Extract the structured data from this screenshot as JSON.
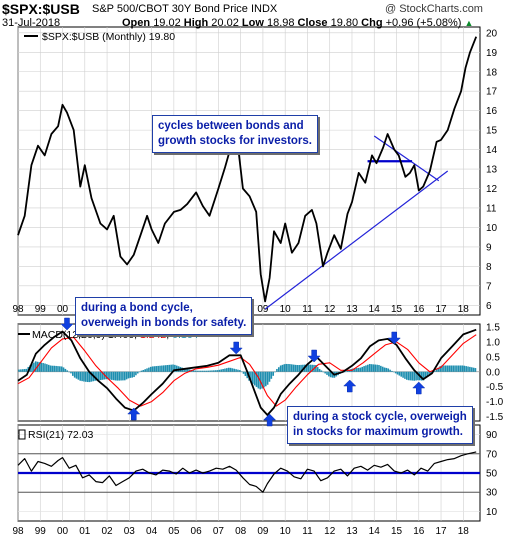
{
  "header": {
    "symbol": "$SPX:$USB",
    "description": "S&P 500/CBOT 30Y Bond Price INDX",
    "watermark": "@ StockCharts.com",
    "date": "31-Jul-2018",
    "open_label": "Open",
    "open": "19.02",
    "high_label": "High",
    "high": "20.02",
    "low_label": "Low",
    "low": "18.98",
    "close_label": "Close",
    "close": "19.80",
    "chg_label": "Chg",
    "chg": "+0.96 (+5.08%)",
    "chg_arrow": "▲"
  },
  "chart_data": [
    {
      "type": "line",
      "panel": "price",
      "legend": "$SPX:$USB (Monthly) 19.80",
      "ylim": [
        5.5,
        20.3
      ],
      "y_ticks": [
        6,
        7,
        8,
        9,
        10,
        11,
        12,
        13,
        14,
        15,
        16,
        17,
        18,
        19,
        20
      ],
      "x_tick_labels": [
        "98",
        "99",
        "00",
        "01",
        "02",
        "03",
        "04",
        "05",
        "06",
        "07",
        "08",
        "09",
        "10",
        "11",
        "12",
        "13",
        "14",
        "15",
        "16",
        "17",
        "18"
      ],
      "grid": true,
      "line_color": "#000000",
      "x": [
        1998.0,
        1998.3,
        1998.6,
        1998.9,
        1999.2,
        1999.5,
        1999.8,
        2000.0,
        2000.2,
        2000.5,
        2000.8,
        2001.0,
        2001.3,
        2001.7,
        2002.0,
        2002.3,
        2002.6,
        2002.9,
        2003.2,
        2003.5,
        2003.8,
        2004.0,
        2004.3,
        2004.6,
        2005.0,
        2005.3,
        2005.6,
        2006.0,
        2006.3,
        2006.6,
        2007.0,
        2007.3,
        2007.6,
        2007.9,
        2008.1,
        2008.4,
        2008.7,
        2008.9,
        2009.1,
        2009.3,
        2009.5,
        2009.8,
        2010.0,
        2010.3,
        2010.6,
        2010.9,
        2011.2,
        2011.4,
        2011.7,
        2011.9,
        2012.2,
        2012.5,
        2012.8,
        2013.0,
        2013.3,
        2013.6,
        2013.9,
        2014.1,
        2014.4,
        2014.6,
        2014.9,
        2015.1,
        2015.4,
        2015.6,
        2015.8,
        2016.0,
        2016.2,
        2016.5,
        2016.8,
        2017.0,
        2017.3,
        2017.6,
        2017.9,
        2018.1,
        2018.3,
        2018.58
      ],
      "values": [
        9.6,
        10.6,
        13.2,
        14.2,
        13.7,
        14.8,
        15.2,
        16.3,
        15.9,
        15.0,
        12.1,
        13.2,
        11.5,
        10.2,
        9.9,
        10.6,
        8.5,
        8.1,
        8.6,
        9.6,
        10.6,
        9.9,
        9.2,
        10.2,
        10.8,
        10.9,
        11.2,
        11.8,
        11.1,
        10.6,
        12.0,
        13.1,
        14.3,
        14.0,
        12.0,
        11.6,
        10.8,
        7.6,
        6.2,
        7.4,
        9.8,
        9.2,
        10.2,
        8.7,
        9.2,
        10.6,
        10.9,
        10.2,
        8.0,
        8.7,
        9.6,
        8.9,
        10.7,
        11.3,
        12.8,
        12.3,
        13.7,
        13.3,
        14.1,
        14.8,
        14.0,
        13.7,
        12.6,
        12.8,
        13.2,
        11.9,
        12.1,
        12.9,
        14.4,
        14.5,
        15.0,
        16.1,
        17.0,
        18.2,
        19.0,
        19.8
      ]
    },
    {
      "type": "line",
      "panel": "macd",
      "legend": "MACD(12,26,9) 1.406, 1.242, 0.164",
      "legend_parts": [
        "MACD(12,26,9) ",
        "1.406",
        ", ",
        "1.242",
        ", ",
        "0.164"
      ],
      "ylim": [
        -1.65,
        1.6
      ],
      "y_ticks": [
        -1.5,
        -1.0,
        -0.5,
        0.0,
        0.5,
        1.0,
        1.5
      ],
      "y_tick_labels": [
        "-1.5",
        "-1.0",
        "-0.5",
        "0.0",
        "0.5",
        "1.0",
        "1.5"
      ],
      "series": [
        {
          "color": "#000000",
          "x": [
            1998.0,
            1998.4,
            1998.8,
            1999.2,
            1999.6,
            2000.0,
            2000.4,
            2000.8,
            2001.2,
            2001.6,
            2002.0,
            2002.4,
            2002.8,
            2003.2,
            2003.6,
            2004.0,
            2004.5,
            2005.0,
            2005.5,
            2006.0,
            2006.5,
            2007.0,
            2007.5,
            2008.0,
            2008.3,
            2008.6,
            2008.9,
            2009.2,
            2009.5,
            2009.8,
            2010.2,
            2010.6,
            2011.0,
            2011.4,
            2011.8,
            2012.2,
            2012.6,
            2013.0,
            2013.4,
            2013.8,
            2014.2,
            2014.6,
            2015.0,
            2015.4,
            2015.8,
            2016.2,
            2016.6,
            2017.0,
            2017.5,
            2018.0,
            2018.58
          ],
          "values": [
            -0.3,
            -0.1,
            0.6,
            0.9,
            1.15,
            1.35,
            1.05,
            0.45,
            0.0,
            -0.3,
            -0.55,
            -0.9,
            -1.2,
            -1.3,
            -1.05,
            -0.75,
            -0.4,
            0.05,
            0.1,
            0.15,
            0.2,
            0.3,
            0.55,
            0.55,
            0.0,
            -0.6,
            -1.2,
            -1.45,
            -1.2,
            -0.75,
            -0.4,
            -0.1,
            0.25,
            0.5,
            0.2,
            -0.1,
            0.0,
            0.2,
            0.45,
            0.85,
            1.05,
            1.1,
            0.9,
            0.45,
            0.05,
            -0.25,
            -0.05,
            0.45,
            0.85,
            1.25,
            1.41
          ]
        },
        {
          "color": "#ff0000",
          "x": [
            1998.0,
            1998.5,
            1999.0,
            1999.5,
            2000.0,
            2000.5,
            2001.0,
            2001.5,
            2002.0,
            2002.5,
            2003.0,
            2003.5,
            2004.0,
            2004.5,
            2005.0,
            2005.5,
            2006.0,
            2006.5,
            2007.0,
            2007.5,
            2008.0,
            2008.4,
            2008.8,
            2009.2,
            2009.6,
            2010.0,
            2010.5,
            2011.0,
            2011.5,
            2012.0,
            2012.5,
            2013.0,
            2013.5,
            2014.0,
            2014.5,
            2015.0,
            2015.5,
            2016.0,
            2016.5,
            2017.0,
            2017.5,
            2018.0,
            2018.58
          ],
          "values": [
            -0.4,
            -0.2,
            0.3,
            0.8,
            1.1,
            1.15,
            0.7,
            0.2,
            -0.2,
            -0.55,
            -0.95,
            -1.15,
            -1.0,
            -0.7,
            -0.3,
            -0.05,
            0.1,
            0.15,
            0.22,
            0.35,
            0.48,
            0.25,
            -0.2,
            -0.8,
            -1.15,
            -0.95,
            -0.5,
            -0.1,
            0.25,
            0.3,
            0.05,
            0.05,
            0.3,
            0.6,
            0.9,
            1.0,
            0.75,
            0.3,
            0.0,
            0.15,
            0.55,
            0.95,
            1.24
          ]
        }
      ],
      "histogram_color": "#1f8fb0"
    },
    {
      "type": "line",
      "panel": "rsi",
      "legend": "RSI(21) 72.03",
      "ylim": [
        0,
        100
      ],
      "y_ticks": [
        10,
        30,
        50,
        70,
        90
      ],
      "y_tick_labels": [
        "10",
        "30",
        "50",
        "70",
        "90"
      ],
      "reference_lines": [
        30,
        50,
        70
      ],
      "line_color": "#000000",
      "x": [
        1998.0,
        1998.3,
        1998.6,
        1998.9,
        1999.2,
        1999.5,
        1999.8,
        2000.0,
        2000.3,
        2000.6,
        2000.9,
        2001.2,
        2001.5,
        2001.8,
        2002.1,
        2002.4,
        2002.7,
        2003.0,
        2003.3,
        2003.6,
        2003.9,
        2004.2,
        2004.5,
        2004.8,
        2005.1,
        2005.4,
        2005.7,
        2006.0,
        2006.3,
        2006.6,
        2006.9,
        2007.2,
        2007.5,
        2007.8,
        2008.1,
        2008.4,
        2008.7,
        2009.0,
        2009.2,
        2009.5,
        2009.8,
        2010.1,
        2010.4,
        2010.7,
        2011.0,
        2011.3,
        2011.6,
        2011.9,
        2012.2,
        2012.5,
        2012.8,
        2013.1,
        2013.4,
        2013.7,
        2014.0,
        2014.3,
        2014.6,
        2014.9,
        2015.2,
        2015.5,
        2015.8,
        2016.1,
        2016.4,
        2016.7,
        2017.0,
        2017.3,
        2017.6,
        2017.9,
        2018.2,
        2018.58
      ],
      "values": [
        58,
        65,
        52,
        62,
        60,
        57,
        63,
        66,
        55,
        58,
        45,
        48,
        41,
        40,
        47,
        37,
        41,
        45,
        52,
        54,
        50,
        48,
        53,
        52,
        49,
        55,
        50,
        53,
        50,
        52,
        55,
        54,
        57,
        53,
        45,
        38,
        36,
        30,
        39,
        49,
        55,
        52,
        46,
        44,
        54,
        52,
        42,
        45,
        52,
        54,
        47,
        55,
        57,
        53,
        58,
        56,
        59,
        52,
        50,
        53,
        48,
        55,
        52,
        60,
        62,
        64,
        65,
        68,
        70,
        72
      ]
    }
  ],
  "annotations": {
    "note1": [
      "cycles between bonds and",
      "growth stocks for investors."
    ],
    "note2": [
      "during a bond cycle,",
      "overweigh in bonds for safety."
    ],
    "note3": [
      "during a stock cycle, overweigh",
      "in stocks for maximum growth."
    ]
  },
  "colors": {
    "trendline": "#2323d8",
    "blue_line": "#0000cc",
    "arrow": "#1040e0",
    "grid": "#cfcfcf"
  }
}
